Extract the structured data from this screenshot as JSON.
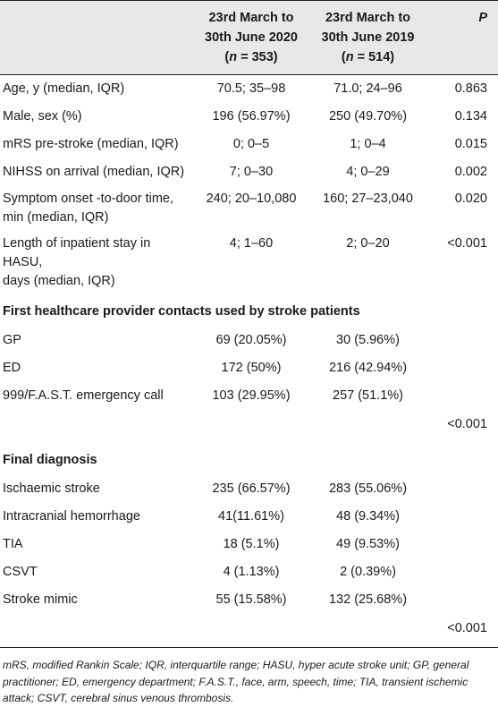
{
  "header": {
    "col1": "",
    "col2_line1": "23rd March to",
    "col2_line2": "30th June 2020",
    "col2_n": "(n = 353)",
    "col3_line1": "23rd March to",
    "col3_line2": "30th June 2019",
    "col3_n": "(n = 514)",
    "col4": "P"
  },
  "rows_top": [
    {
      "label": "Age, y (median, IQR)",
      "v2020": "70.5; 35–98",
      "v2019": "71.0; 24–96",
      "p": "0.863"
    },
    {
      "label": "Male, sex (%)",
      "v2020": "196 (56.97%)",
      "v2019": "250 (49.70%)",
      "p": "0.134"
    },
    {
      "label": "mRS pre-stroke (median, IQR)",
      "v2020": "0; 0–5",
      "v2019": "1; 0–4",
      "p": "0.015"
    },
    {
      "label": "NIHSS on arrival (median, IQR)",
      "v2020": "7; 0–30",
      "v2019": "4; 0–29",
      "p": "0.002"
    },
    {
      "label_line1": "Symptom onset -to-door time,",
      "label_line2": "min (median, IQR)",
      "v2020": "240; 20–10,080",
      "v2019": "160; 27–23,040",
      "p": "0.020"
    },
    {
      "label_line1": "Length of inpatient stay in HASU,",
      "label_line2": "days (median, IQR)",
      "v2020": "4; 1–60",
      "v2019": "2; 0–20",
      "p": "<0.001"
    }
  ],
  "section_contacts": {
    "title": "First healthcare provider contacts used by stroke patients",
    "rows": [
      {
        "label": "GP",
        "v2020": "69 (20.05%)",
        "v2019": "30 (5.96%)"
      },
      {
        "label": "ED",
        "v2020": "172 (50%)",
        "v2019": "216 (42.94%)"
      },
      {
        "label": "999/F.A.S.T. emergency call",
        "v2020": "103 (29.95%)",
        "v2019": "257 (51.1%)"
      }
    ],
    "p": "<0.001"
  },
  "section_diagnosis": {
    "title": "Final diagnosis",
    "rows": [
      {
        "label": "Ischaemic stroke",
        "v2020": "235 (66.57%)",
        "v2019": "283 (55.06%)"
      },
      {
        "label": "Intracranial hemorrhage",
        "v2020": "41(11.61%)",
        "v2019": "48 (9.34%)"
      },
      {
        "label": "TIA",
        "v2020": "18 (5.1%)",
        "v2019": "49 (9.53%)"
      },
      {
        "label": "CSVT",
        "v2020": "4 (1.13%)",
        "v2019": "2 (0.39%)"
      },
      {
        "label": "Stroke mimic",
        "v2020": "55 (15.58%)",
        "v2019": "132 (25.68%)"
      }
    ],
    "p": "<0.001"
  },
  "footnote": "mRS, modified Rankin Scale; IQR, interquartile range; HASU, hyper acute stroke unit; GP, general practitioner; ED, emergency department; F.A.S.T., face, arm, speech, time; TIA, transient ischemic attack; CSVT, cerebral sinus venous thrombosis."
}
